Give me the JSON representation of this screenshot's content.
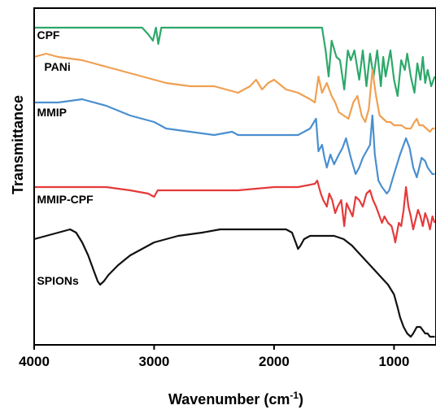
{
  "chart_data": {
    "type": "line",
    "xlabel": "Wavenumber (cm",
    "xlabel_sup": "-1",
    "xlabel_end": ")",
    "ylabel": "Transmittance",
    "xlim": [
      4000,
      650
    ],
    "x_reversed": true,
    "ylim": [
      0,
      100
    ],
    "xticks": [
      4000,
      3000,
      2000,
      1000
    ],
    "xtick_labels": [
      "4000",
      "3000",
      "2000",
      "1000"
    ],
    "grid": false,
    "series": [
      {
        "name": "CPF",
        "color": "#2ea86a",
        "points": [
          [
            4000,
            95
          ],
          [
            3700,
            95
          ],
          [
            3300,
            95
          ],
          [
            3100,
            95
          ],
          [
            3050,
            93
          ],
          [
            3010,
            91
          ],
          [
            2985,
            95
          ],
          [
            2965,
            90
          ],
          [
            2940,
            95
          ],
          [
            2500,
            95
          ],
          [
            2000,
            95
          ],
          [
            1600,
            95
          ],
          [
            1570,
            88
          ],
          [
            1545,
            80
          ],
          [
            1520,
            91
          ],
          [
            1480,
            86
          ],
          [
            1450,
            85
          ],
          [
            1415,
            76
          ],
          [
            1385,
            88
          ],
          [
            1360,
            85
          ],
          [
            1330,
            88
          ],
          [
            1290,
            79
          ],
          [
            1260,
            88
          ],
          [
            1230,
            77
          ],
          [
            1200,
            87
          ],
          [
            1170,
            80
          ],
          [
            1140,
            88
          ],
          [
            1110,
            77
          ],
          [
            1090,
            86
          ],
          [
            1070,
            80
          ],
          [
            1030,
            88
          ],
          [
            1000,
            79
          ],
          [
            970,
            74
          ],
          [
            940,
            85
          ],
          [
            910,
            82
          ],
          [
            890,
            87
          ],
          [
            860,
            80
          ],
          [
            830,
            75
          ],
          [
            805,
            84
          ],
          [
            780,
            79
          ],
          [
            760,
            86
          ],
          [
            740,
            78
          ],
          [
            720,
            82
          ],
          [
            690,
            77
          ],
          [
            660,
            80
          ]
        ]
      },
      {
        "name": "PANi",
        "color": "#f0a052",
        "points": [
          [
            4000,
            86
          ],
          [
            3900,
            87
          ],
          [
            3800,
            86
          ],
          [
            3600,
            85
          ],
          [
            3500,
            84
          ],
          [
            3400,
            83
          ],
          [
            3200,
            81
          ],
          [
            3000,
            79
          ],
          [
            2900,
            78
          ],
          [
            2700,
            77
          ],
          [
            2500,
            77
          ],
          [
            2400,
            76
          ],
          [
            2300,
            75
          ],
          [
            2200,
            77
          ],
          [
            2150,
            79
          ],
          [
            2100,
            76
          ],
          [
            2050,
            78
          ],
          [
            2000,
            79
          ],
          [
            1900,
            76
          ],
          [
            1800,
            75
          ],
          [
            1700,
            73
          ],
          [
            1660,
            72
          ],
          [
            1630,
            80
          ],
          [
            1600,
            75
          ],
          [
            1560,
            78
          ],
          [
            1520,
            74
          ],
          [
            1490,
            72
          ],
          [
            1460,
            69
          ],
          [
            1420,
            68
          ],
          [
            1380,
            67
          ],
          [
            1340,
            72
          ],
          [
            1305,
            74
          ],
          [
            1270,
            68
          ],
          [
            1240,
            66
          ],
          [
            1210,
            70
          ],
          [
            1180,
            82
          ],
          [
            1150,
            74
          ],
          [
            1120,
            68
          ],
          [
            1090,
            67
          ],
          [
            1060,
            66
          ],
          [
            1030,
            66
          ],
          [
            1000,
            65
          ],
          [
            970,
            65
          ],
          [
            940,
            65
          ],
          [
            900,
            64
          ],
          [
            860,
            64
          ],
          [
            830,
            66
          ],
          [
            810,
            67
          ],
          [
            790,
            65
          ],
          [
            760,
            65
          ],
          [
            730,
            64
          ],
          [
            700,
            63
          ],
          [
            680,
            64
          ],
          [
            660,
            64
          ]
        ]
      },
      {
        "name": "MMIP",
        "color": "#4a8fd0",
        "points": [
          [
            4000,
            72
          ],
          [
            3800,
            72
          ],
          [
            3600,
            73
          ],
          [
            3400,
            71
          ],
          [
            3200,
            68
          ],
          [
            3000,
            66
          ],
          [
            2900,
            64
          ],
          [
            2700,
            63
          ],
          [
            2500,
            62
          ],
          [
            2350,
            63
          ],
          [
            2300,
            62
          ],
          [
            2000,
            62
          ],
          [
            1800,
            62
          ],
          [
            1700,
            64
          ],
          [
            1650,
            67
          ],
          [
            1630,
            57
          ],
          [
            1600,
            59
          ],
          [
            1580,
            55
          ],
          [
            1560,
            52
          ],
          [
            1530,
            56
          ],
          [
            1500,
            53
          ],
          [
            1460,
            56
          ],
          [
            1430,
            58
          ],
          [
            1400,
            61
          ],
          [
            1360,
            55
          ],
          [
            1320,
            50
          ],
          [
            1290,
            52
          ],
          [
            1260,
            55
          ],
          [
            1230,
            57
          ],
          [
            1200,
            59
          ],
          [
            1180,
            68
          ],
          [
            1160,
            56
          ],
          [
            1130,
            48
          ],
          [
            1100,
            46
          ],
          [
            1080,
            45
          ],
          [
            1060,
            44
          ],
          [
            1040,
            45
          ],
          [
            1000,
            50
          ],
          [
            950,
            56
          ],
          [
            900,
            61
          ],
          [
            870,
            58
          ],
          [
            840,
            52
          ],
          [
            810,
            49
          ],
          [
            790,
            52
          ],
          [
            770,
            55
          ],
          [
            740,
            54
          ],
          [
            720,
            52
          ],
          [
            700,
            51
          ],
          [
            680,
            50
          ],
          [
            660,
            50
          ]
        ]
      },
      {
        "name": "MMIP-CPF",
        "color": "#e53a3a",
        "points": [
          [
            4000,
            46
          ],
          [
            3800,
            46
          ],
          [
            3600,
            46
          ],
          [
            3400,
            46
          ],
          [
            3200,
            45
          ],
          [
            3050,
            44
          ],
          [
            3000,
            43
          ],
          [
            2970,
            45
          ],
          [
            2900,
            45
          ],
          [
            2700,
            45
          ],
          [
            2500,
            45
          ],
          [
            2300,
            45
          ],
          [
            2000,
            46
          ],
          [
            1800,
            46
          ],
          [
            1660,
            47
          ],
          [
            1640,
            48
          ],
          [
            1610,
            44
          ],
          [
            1590,
            42
          ],
          [
            1560,
            40
          ],
          [
            1540,
            44
          ],
          [
            1515,
            42
          ],
          [
            1490,
            38
          ],
          [
            1470,
            40
          ],
          [
            1440,
            42
          ],
          [
            1415,
            34
          ],
          [
            1395,
            41
          ],
          [
            1370,
            39
          ],
          [
            1345,
            37
          ],
          [
            1320,
            43
          ],
          [
            1290,
            42
          ],
          [
            1260,
            40
          ],
          [
            1230,
            44
          ],
          [
            1200,
            45
          ],
          [
            1175,
            42
          ],
          [
            1150,
            40
          ],
          [
            1130,
            38
          ],
          [
            1100,
            35
          ],
          [
            1080,
            37
          ],
          [
            1050,
            35
          ],
          [
            1020,
            34
          ],
          [
            1000,
            31
          ],
          [
            990,
            29
          ],
          [
            975,
            32
          ],
          [
            960,
            35
          ],
          [
            940,
            34
          ],
          [
            920,
            39
          ],
          [
            900,
            46
          ],
          [
            880,
            40
          ],
          [
            860,
            37
          ],
          [
            840,
            33
          ],
          [
            820,
            36
          ],
          [
            800,
            39
          ],
          [
            780,
            37
          ],
          [
            760,
            34
          ],
          [
            740,
            38
          ],
          [
            720,
            36
          ],
          [
            700,
            33
          ],
          [
            680,
            37
          ],
          [
            660,
            35
          ]
        ]
      },
      {
        "name": "SPIONs",
        "color": "#111111",
        "points": [
          [
            4000,
            30
          ],
          [
            3900,
            31
          ],
          [
            3800,
            32
          ],
          [
            3700,
            33
          ],
          [
            3650,
            32
          ],
          [
            3600,
            29
          ],
          [
            3550,
            25
          ],
          [
            3500,
            20
          ],
          [
            3470,
            17
          ],
          [
            3450,
            16
          ],
          [
            3420,
            17
          ],
          [
            3380,
            19
          ],
          [
            3300,
            22
          ],
          [
            3200,
            25
          ],
          [
            3100,
            27
          ],
          [
            3000,
            29
          ],
          [
            2800,
            31
          ],
          [
            2600,
            32
          ],
          [
            2450,
            33
          ],
          [
            2300,
            33
          ],
          [
            2100,
            33
          ],
          [
            1900,
            33
          ],
          [
            1850,
            32
          ],
          [
            1820,
            29
          ],
          [
            1800,
            27
          ],
          [
            1780,
            28
          ],
          [
            1750,
            30
          ],
          [
            1700,
            31
          ],
          [
            1600,
            31
          ],
          [
            1500,
            31
          ],
          [
            1420,
            30
          ],
          [
            1350,
            28
          ],
          [
            1300,
            26
          ],
          [
            1250,
            24
          ],
          [
            1200,
            22
          ],
          [
            1150,
            20
          ],
          [
            1100,
            18
          ],
          [
            1050,
            16
          ],
          [
            1000,
            13
          ],
          [
            970,
            9
          ],
          [
            950,
            6
          ],
          [
            920,
            3
          ],
          [
            890,
            1
          ],
          [
            860,
            0
          ],
          [
            840,
            1
          ],
          [
            810,
            3
          ],
          [
            780,
            3
          ],
          [
            760,
            2
          ],
          [
            740,
            1
          ],
          [
            720,
            1
          ],
          [
            700,
            0
          ],
          [
            680,
            0
          ],
          [
            660,
            0
          ]
        ]
      }
    ]
  }
}
